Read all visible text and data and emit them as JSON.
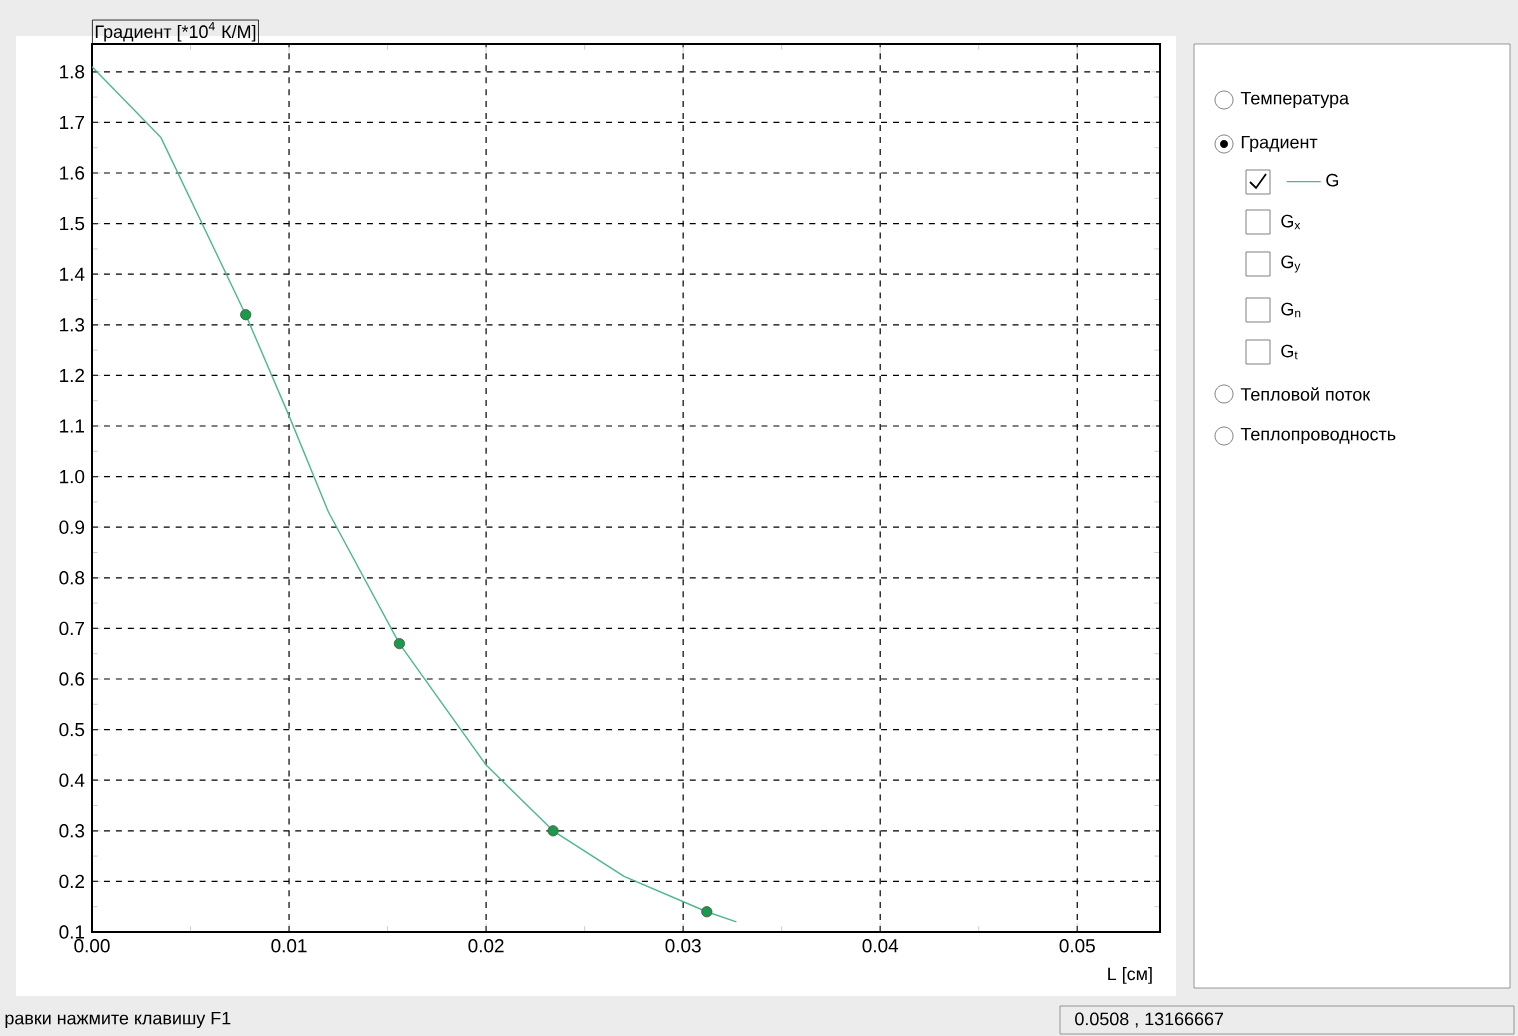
{
  "chart_data": {
    "type": "line",
    "ylabel": "Градиент [*10$^{4}$ К/М]",
    "xlabel": "L [см]",
    "series": [
      {
        "name": "G",
        "color": "#4cb88c",
        "x": [
          0,
          0.0035,
          0.0078,
          0.01,
          0.012,
          0.0156,
          0.02,
          0.0234,
          0.027,
          0.0312,
          0.0327
        ],
        "values": [
          1.81,
          1.67,
          1.32,
          1.12,
          0.93,
          0.67,
          0.43,
          0.3,
          0.21,
          0.14,
          0.12
        ]
      },
      {
        "type": "scatter",
        "color": "#1b9a4a",
        "x": [
          0.0078,
          0.0156,
          0.0234,
          0.0312
        ],
        "values": [
          1.32,
          0.67,
          0.3,
          0.14
        ]
      }
    ],
    "xlim": [
      0,
      0.0542
    ],
    "ylim": [
      0.1,
      1.855
    ],
    "xticks": [
      {
        "value": 0,
        "label": "0.00"
      },
      {
        "value": 0.01,
        "label": "0.01"
      },
      {
        "value": 0.02,
        "label": "0.02"
      },
      {
        "value": 0.03,
        "label": "0.03"
      },
      {
        "value": 0.04,
        "label": "0.04"
      },
      {
        "value": 0.05,
        "label": "0.05"
      }
    ],
    "yticks": [
      0.1,
      0.2,
      0.3,
      0.4,
      0.5,
      0.6,
      0.7,
      0.8,
      0.9,
      {
        "value": 1,
        "label": "1.0"
      },
      1.1,
      1.2,
      1.3,
      1.4,
      1.5,
      1.6,
      1.7,
      1.8
    ],
    "grid": true,
    "legend": "right",
    "annotations": [
      "Температура",
      "Градиент",
      "G$_{x}$",
      "G$_{y}$",
      "G$_{n}$",
      "G$_{t}$",
      "Тепловой поток",
      "Теплопроводность",
      "равки нажмите клавишу F1",
      "0.0508 , 13166667"
    ]
  }
}
